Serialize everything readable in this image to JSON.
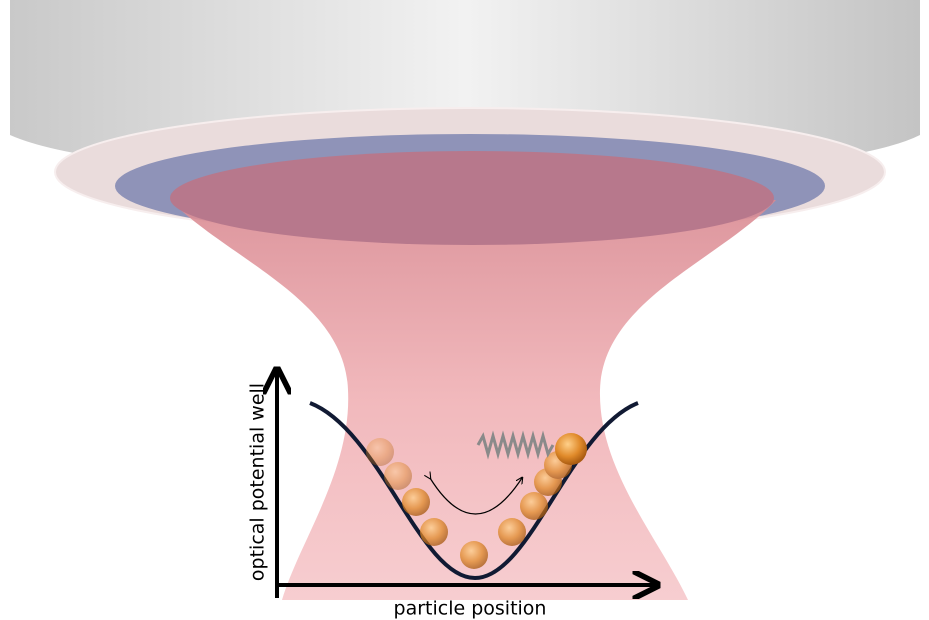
{
  "axes": {
    "y_label": "optical potential well",
    "x_label": "particle position"
  }
}
